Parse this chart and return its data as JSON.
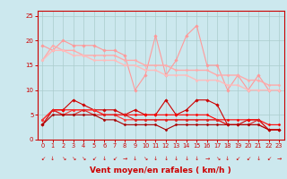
{
  "x": [
    0,
    1,
    2,
    3,
    4,
    5,
    6,
    7,
    8,
    9,
    10,
    11,
    12,
    13,
    14,
    15,
    16,
    17,
    18,
    19,
    20,
    21,
    22,
    23
  ],
  "series": [
    {
      "name": "gust_high_pink",
      "color": "#ff9999",
      "lw": 0.8,
      "marker": "D",
      "ms": 1.8,
      "y": [
        19,
        18,
        20,
        19,
        19,
        19,
        18,
        18,
        17,
        10,
        13,
        21,
        13,
        16,
        21,
        23,
        15,
        15,
        10,
        13,
        10,
        13,
        10,
        10
      ]
    },
    {
      "name": "mean_high_pink",
      "color": "#ffaaaa",
      "lw": 1.0,
      "marker": "D",
      "ms": 1.5,
      "y": [
        16,
        19,
        18,
        18,
        17,
        17,
        17,
        17,
        16,
        16,
        15,
        15,
        15,
        14,
        14,
        14,
        14,
        13,
        13,
        13,
        12,
        12,
        11,
        11
      ]
    },
    {
      "name": "mean_low_pink",
      "color": "#ffbbbb",
      "lw": 1.0,
      "marker": "D",
      "ms": 1.5,
      "y": [
        16,
        18,
        18,
        17,
        17,
        16,
        16,
        16,
        15,
        15,
        14,
        14,
        13,
        13,
        13,
        12,
        12,
        12,
        11,
        11,
        10,
        10,
        10,
        10
      ]
    },
    {
      "name": "gust_red",
      "color": "#cc0000",
      "lw": 0.8,
      "marker": "D",
      "ms": 1.8,
      "y": [
        3,
        6,
        6,
        8,
        7,
        6,
        6,
        6,
        5,
        6,
        5,
        5,
        8,
        5,
        6,
        8,
        8,
        7,
        3,
        3,
        4,
        4,
        2,
        2
      ]
    },
    {
      "name": "mean_red1",
      "color": "#ff0000",
      "lw": 0.8,
      "marker": "D",
      "ms": 1.5,
      "y": [
        4,
        6,
        6,
        6,
        6,
        6,
        5,
        5,
        5,
        5,
        5,
        5,
        5,
        5,
        5,
        5,
        5,
        4,
        4,
        4,
        4,
        4,
        3,
        3
      ]
    },
    {
      "name": "mean_red2",
      "color": "#ff3333",
      "lw": 0.8,
      "marker": "D",
      "ms": 1.5,
      "y": [
        4,
        6,
        5,
        6,
        6,
        6,
        5,
        5,
        4,
        4,
        4,
        4,
        4,
        4,
        4,
        4,
        4,
        4,
        3,
        3,
        3,
        3,
        2,
        2
      ]
    },
    {
      "name": "mean_red3",
      "color": "#dd2222",
      "lw": 0.8,
      "marker": "D",
      "ms": 1.5,
      "y": [
        3,
        6,
        5,
        5,
        6,
        5,
        5,
        5,
        5,
        4,
        4,
        4,
        4,
        4,
        4,
        4,
        4,
        4,
        3,
        3,
        3,
        4,
        2,
        2
      ]
    },
    {
      "name": "min_red",
      "color": "#aa0000",
      "lw": 0.8,
      "marker": "D",
      "ms": 1.5,
      "y": [
        3,
        5,
        5,
        5,
        5,
        5,
        4,
        4,
        3,
        3,
        3,
        3,
        2,
        3,
        3,
        3,
        3,
        3,
        3,
        3,
        3,
        3,
        2,
        2
      ]
    }
  ],
  "arrows": [
    "↙",
    "↓",
    "↘",
    "↘",
    "↘",
    "↙",
    "↓",
    "↙",
    "→",
    "↓",
    "↘",
    "↓",
    "↓",
    "↓",
    "↓",
    "↓",
    "→",
    "↘",
    "↓",
    "↙",
    "↙",
    "↓",
    "↙",
    "→"
  ],
  "xlabel": "Vent moyen/en rafales ( km/h )",
  "xlim": [
    -0.5,
    23.5
  ],
  "ylim": [
    0,
    26
  ],
  "yticks": [
    0,
    5,
    10,
    15,
    20,
    25
  ],
  "xticks": [
    0,
    1,
    2,
    3,
    4,
    5,
    6,
    7,
    8,
    9,
    10,
    11,
    12,
    13,
    14,
    15,
    16,
    17,
    18,
    19,
    20,
    21,
    22,
    23
  ],
  "bg_color": "#cce8ee",
  "grid_color": "#aacccc",
  "spine_color": "#cc0000",
  "tick_color": "#cc0000",
  "label_color": "#cc0000"
}
